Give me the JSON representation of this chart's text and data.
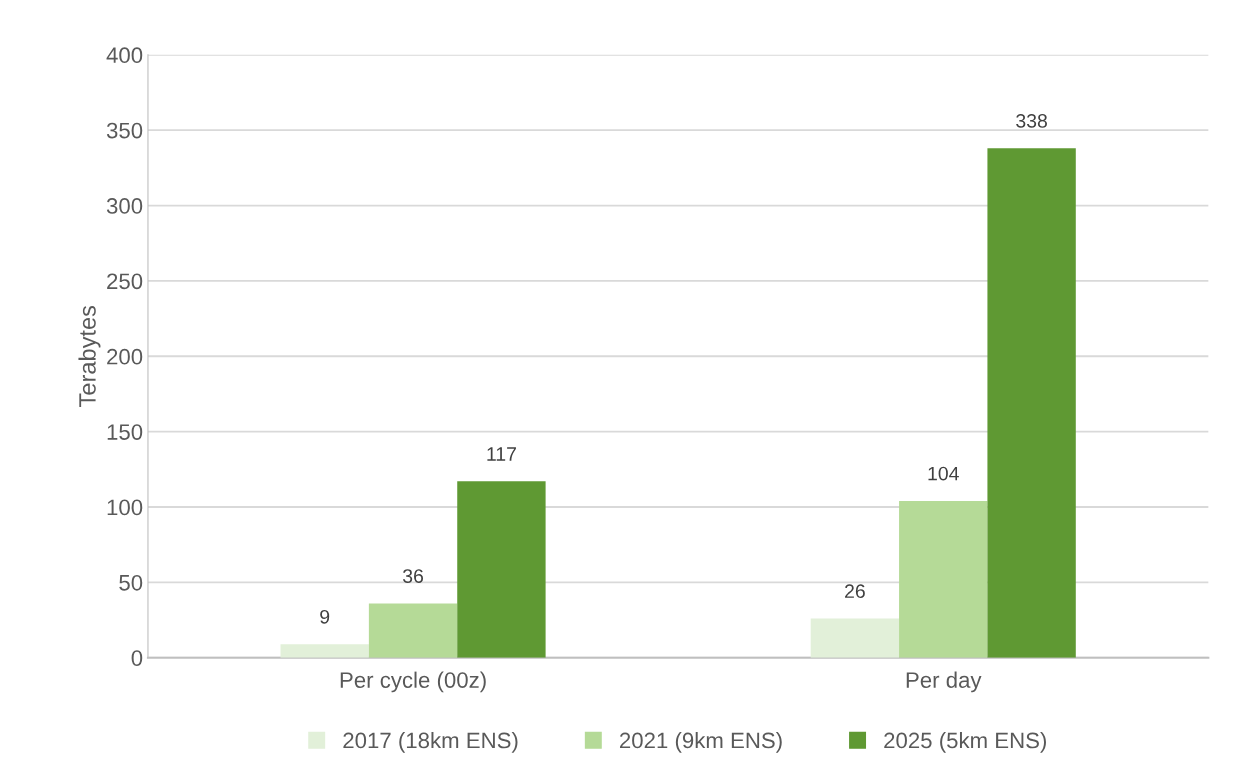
{
  "chart_data": {
    "type": "bar",
    "ylabel": "Terabytes",
    "categories": [
      "Per cycle (00z)",
      "Per day"
    ],
    "series": [
      {
        "name": "2017 (18km ENS)",
        "color": "#e2f0d9",
        "values": [
          9,
          26
        ]
      },
      {
        "name": "2021 (9km ENS)",
        "color": "#b5da97",
        "values": [
          36,
          104
        ]
      },
      {
        "name": "2025 (5km ENS)",
        "color": "#5f9933",
        "values": [
          117,
          338
        ]
      }
    ],
    "ylim": [
      0,
      400
    ],
    "yticks": [
      0,
      50,
      100,
      150,
      200,
      250,
      300,
      350,
      400
    ],
    "grid": "y",
    "legend": "bottom",
    "data_labels": true
  }
}
